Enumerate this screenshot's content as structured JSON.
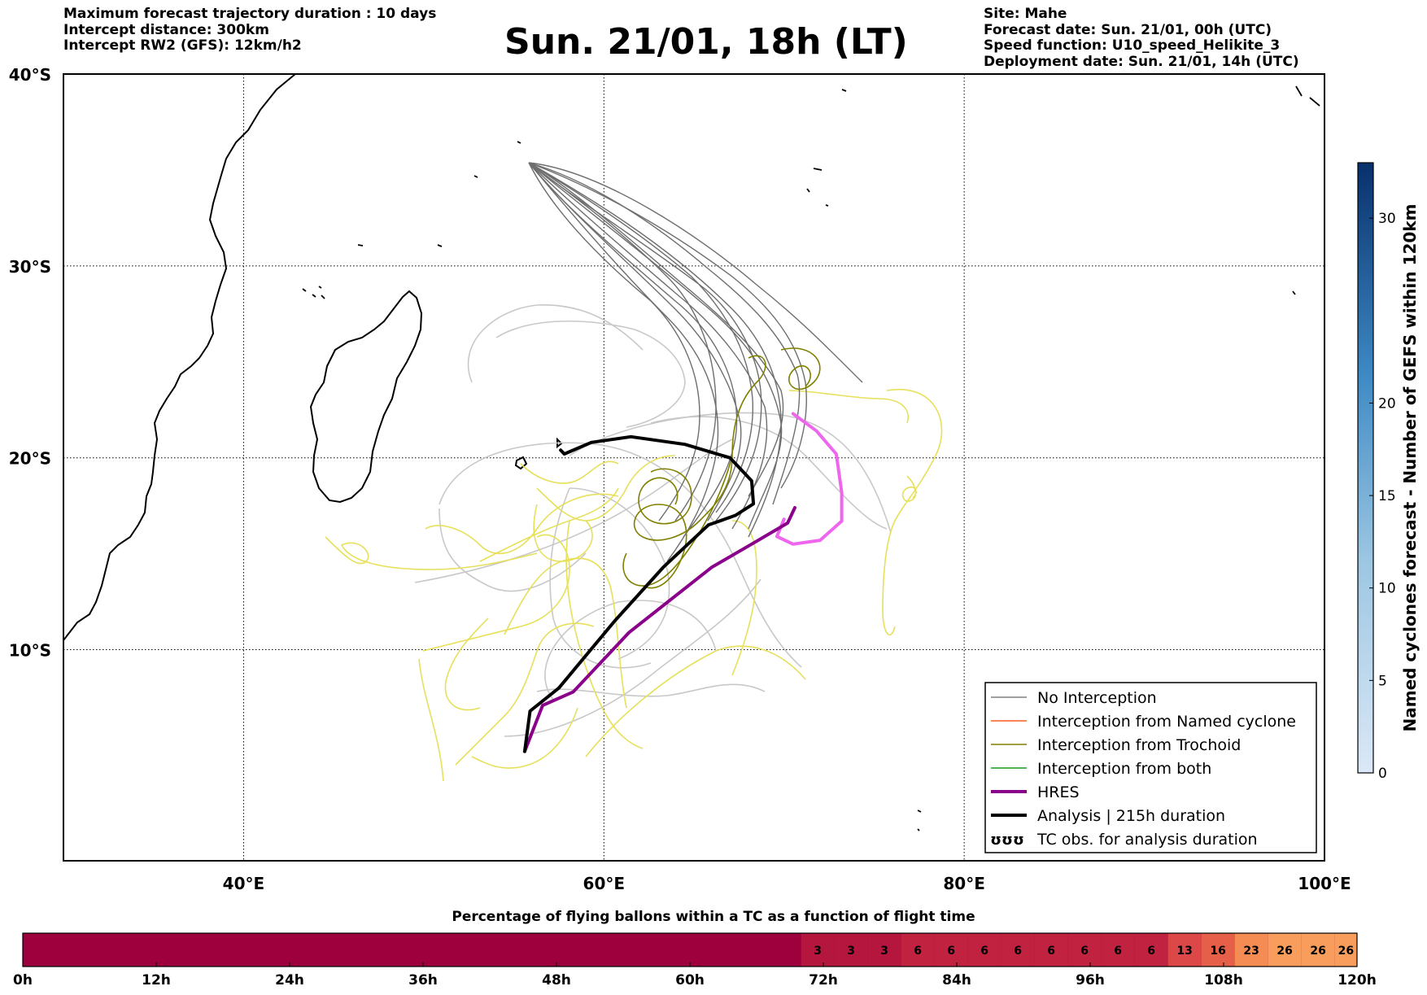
{
  "header": {
    "left": [
      "Maximum forecast trajectory duration : 10 days",
      "Intercept distance: 300km",
      "Intercept RW2 (GFS):  12km/h2"
    ],
    "title": "Sun. 21/01, 18h (LT)",
    "right": [
      "Site: Mahe",
      "Forecast date: Sun. 21/01, 00h (UTC)",
      "Speed function: U10_speed_Helikite_3",
      "Deployment date: Sun. 21/01, 14h (UTC)"
    ]
  },
  "map": {
    "lon_range": [
      30,
      100
    ],
    "lat_range": [
      -40,
      1
    ],
    "lat_ticks": [
      {
        "value": -10,
        "label": "10°S"
      },
      {
        "value": -20,
        "label": "20°S"
      },
      {
        "value": -30,
        "label": "30°S"
      },
      {
        "value": -40,
        "label": "40°S"
      }
    ],
    "lon_ticks": [
      {
        "value": 40,
        "label": "40°E"
      },
      {
        "value": 60,
        "label": "60°E"
      },
      {
        "value": 80,
        "label": "80°E"
      },
      {
        "value": 100,
        "label": "100°E"
      }
    ],
    "grid": true,
    "legend": {
      "position": "bottom-right",
      "entries": [
        {
          "label": "No Interception",
          "color": "#808080"
        },
        {
          "label": "Interception from Named cyclone",
          "color": "#ff5a1e"
        },
        {
          "label": "Interception from Trochoid",
          "color": "#808000"
        },
        {
          "label": "Interception from both",
          "color": "#1a9a1a"
        },
        {
          "label": "HRES",
          "color": "#8b008b"
        },
        {
          "label": "Analysis | 215h duration",
          "color": "#000000"
        },
        {
          "label": "TC obs. for analysis duration",
          "color": "#000000",
          "symbol": "ʊʊʊ"
        }
      ]
    },
    "tracks": {
      "analysis": {
        "color": "#000000",
        "points": [
          [
            55.6,
            -4.7
          ],
          [
            55.9,
            -6.8
          ],
          [
            57.5,
            -8.0
          ],
          [
            60.6,
            -11.5
          ],
          [
            63.3,
            -14.3
          ],
          [
            65.8,
            -16.5
          ],
          [
            67.3,
            -17.0
          ],
          [
            68.3,
            -17.6
          ],
          [
            68.2,
            -18.8
          ],
          [
            67.0,
            -20.0
          ],
          [
            64.5,
            -20.7
          ],
          [
            61.5,
            -21.1
          ],
          [
            59.3,
            -20.8
          ],
          [
            57.8,
            -20.2
          ],
          [
            57.6,
            -20.4
          ]
        ]
      },
      "hres": {
        "color": "#8b008b",
        "points": [
          [
            55.6,
            -4.7
          ],
          [
            56.6,
            -7.1
          ],
          [
            58.3,
            -7.8
          ],
          [
            61.4,
            -10.9
          ],
          [
            66.0,
            -14.3
          ],
          [
            68.2,
            -15.5
          ],
          [
            70.2,
            -16.6
          ],
          [
            70.6,
            -17.4
          ]
        ]
      },
      "hres_tc": {
        "color": "#ee66ee",
        "points": [
          [
            70.0,
            -16.8
          ],
          [
            69.6,
            -15.9
          ],
          [
            70.5,
            -15.5
          ],
          [
            72.0,
            -15.7
          ],
          [
            73.2,
            -16.7
          ],
          [
            73.2,
            -18.2
          ],
          [
            72.9,
            -20.2
          ],
          [
            71.8,
            -21.4
          ],
          [
            70.5,
            -22.3
          ]
        ]
      }
    }
  },
  "tc_colorbar": {
    "label": "Named cyclones forecast - Number of GEFS within 120km",
    "ticks": [
      "0",
      "5",
      "10",
      "15",
      "20",
      "30"
    ],
    "tick_values": [
      0,
      5,
      10,
      15,
      20,
      30
    ],
    "max": 33
  },
  "flight_bar": {
    "title": "Percentage of flying ballons within a TC as a function of flight time",
    "base_color": "#9d003c",
    "cells": [
      {
        "start_h": 70,
        "end_h": 73,
        "value": "3",
        "color": "#b5163e"
      },
      {
        "start_h": 73,
        "end_h": 76,
        "value": "3",
        "color": "#b5163e"
      },
      {
        "start_h": 76,
        "end_h": 79,
        "value": "3",
        "color": "#b5163e"
      },
      {
        "start_h": 79,
        "end_h": 82,
        "value": "6",
        "color": "#c02240"
      },
      {
        "start_h": 82,
        "end_h": 85,
        "value": "6",
        "color": "#c02240"
      },
      {
        "start_h": 85,
        "end_h": 88,
        "value": "6",
        "color": "#c02240"
      },
      {
        "start_h": 88,
        "end_h": 91,
        "value": "6",
        "color": "#c02240"
      },
      {
        "start_h": 91,
        "end_h": 94,
        "value": "6",
        "color": "#c02240"
      },
      {
        "start_h": 94,
        "end_h": 97,
        "value": "6",
        "color": "#c02240"
      },
      {
        "start_h": 97,
        "end_h": 100,
        "value": "6",
        "color": "#c02240"
      },
      {
        "start_h": 100,
        "end_h": 103,
        "value": "6",
        "color": "#c02240"
      },
      {
        "start_h": 103,
        "end_h": 106,
        "value": "13",
        "color": "#dc4848"
      },
      {
        "start_h": 106,
        "end_h": 109,
        "value": "16",
        "color": "#e65f48"
      },
      {
        "start_h": 109,
        "end_h": 112,
        "value": "23",
        "color": "#f48c54"
      },
      {
        "start_h": 112,
        "end_h": 115,
        "value": "26",
        "color": "#f89d5c"
      },
      {
        "start_h": 115,
        "end_h": 118,
        "value": "26",
        "color": "#f89d5c"
      },
      {
        "start_h": 118,
        "end_h": 120,
        "value": "26",
        "color": "#f89d5c"
      }
    ],
    "ticks": [
      "0h",
      "12h",
      "24h",
      "36h",
      "48h",
      "60h",
      "72h",
      "84h",
      "96h",
      "108h",
      "120h"
    ],
    "tick_hours": [
      0,
      12,
      24,
      36,
      48,
      60,
      72,
      84,
      96,
      108,
      120
    ],
    "max_h": 120
  }
}
